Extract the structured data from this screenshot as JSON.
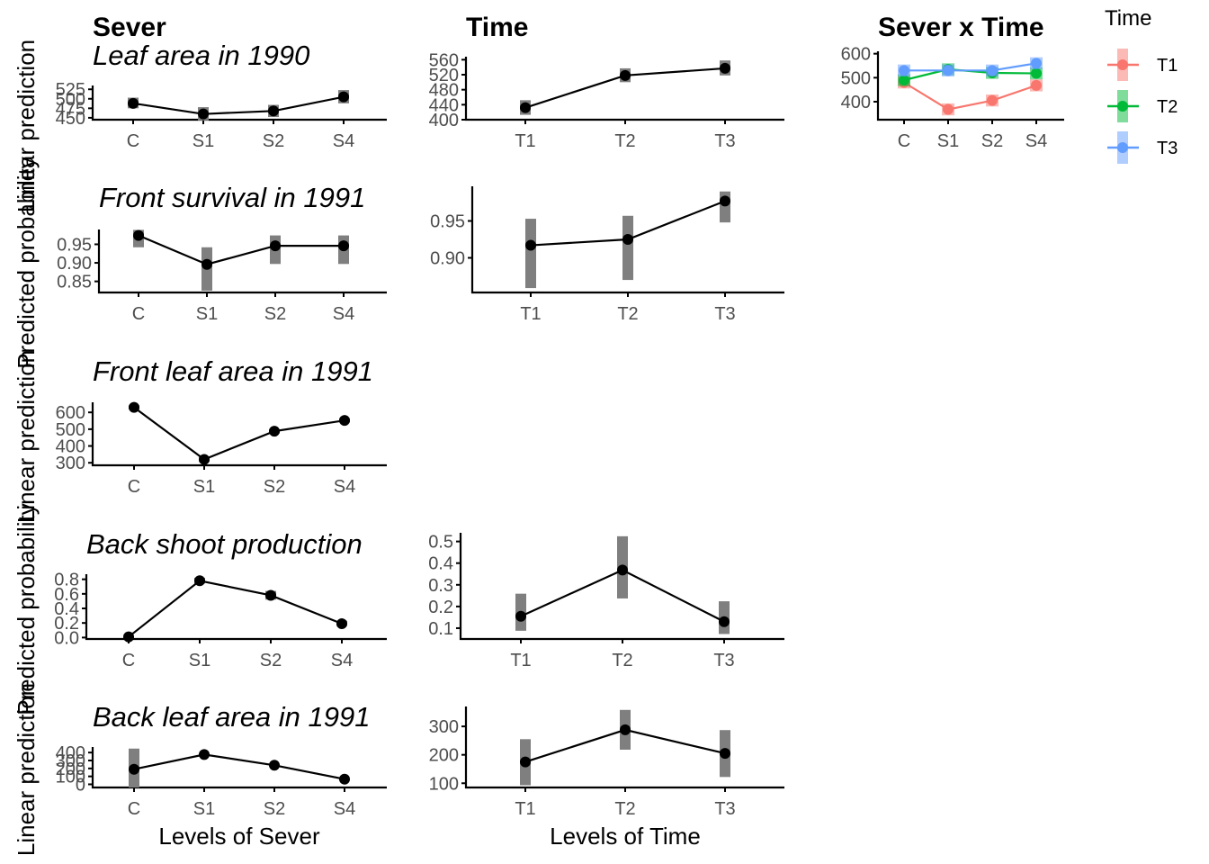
{
  "column_titles": {
    "sever": "Sever",
    "time": "Time",
    "interaction": "Sever x Time"
  },
  "y_axis_labels": [
    "Linear prediction",
    "Predicted probability",
    "Linear prediction",
    "Predicted probability",
    "Linear prediction"
  ],
  "x_axis_labels": {
    "sever": "Levels of Sever",
    "time": "Levels of Time"
  },
  "legend": {
    "title": "Time",
    "items": [
      {
        "label": "T1",
        "color": "#F8766D"
      },
      {
        "label": "T2",
        "color": "#00BA38"
      },
      {
        "label": "T3",
        "color": "#619CFF"
      }
    ]
  },
  "colors": {
    "line": "#000000",
    "ci": "#808080",
    "axis": "#000000",
    "tick_text": "#4d4d4d"
  },
  "chart_data": [
    {
      "id": "leaf1990-sever",
      "type": "line",
      "row": 0,
      "col": "sever",
      "title": "Leaf area in 1990",
      "ylabel": "Linear prediction",
      "xlabel": "",
      "categories": [
        "C",
        "S1",
        "S2",
        "S4"
      ],
      "values": [
        488,
        460,
        468,
        505
      ],
      "ci_low": [
        475,
        443,
        452,
        488
      ],
      "ci_high": [
        503,
        478,
        484,
        523
      ],
      "yticks": [
        450,
        475,
        500,
        525
      ],
      "ylim": [
        445,
        535
      ]
    },
    {
      "id": "leaf1990-time",
      "type": "line",
      "row": 0,
      "col": "time",
      "title": "",
      "ylabel": "",
      "xlabel": "",
      "categories": [
        "T1",
        "T2",
        "T3"
      ],
      "values": [
        432,
        518,
        537
      ],
      "ci_low": [
        413,
        500,
        518
      ],
      "ci_high": [
        452,
        537,
        558
      ],
      "yticks": [
        400,
        440,
        480,
        520,
        560
      ],
      "ylim": [
        400,
        568
      ]
    },
    {
      "id": "leaf1990-interaction",
      "type": "line",
      "row": 0,
      "col": "interaction",
      "title": "",
      "ylabel": "",
      "xlabel": "",
      "categories": [
        "C",
        "S1",
        "S2",
        "S4"
      ],
      "series": [
        {
          "name": "T1",
          "values": [
            480,
            368,
            405,
            468
          ],
          "ci_low": [
            455,
            343,
            380,
            443
          ],
          "ci_high": [
            505,
            393,
            430,
            493
          ]
        },
        {
          "name": "T2",
          "values": [
            490,
            535,
            520,
            518
          ],
          "ci_low": [
            465,
            510,
            495,
            493
          ],
          "ci_high": [
            515,
            560,
            545,
            543
          ]
        },
        {
          "name": "T3",
          "values": [
            530,
            530,
            530,
            560
          ],
          "ci_low": [
            505,
            505,
            505,
            535
          ],
          "ci_high": [
            555,
            555,
            555,
            585
          ]
        }
      ],
      "yticks": [
        400,
        500,
        600
      ],
      "ylim": [
        325,
        610
      ]
    },
    {
      "id": "frontsurv-sever",
      "type": "line",
      "row": 1,
      "col": "sever",
      "title": "Front survival in 1991",
      "ylabel": "Predicted probability",
      "xlabel": "",
      "categories": [
        "C",
        "S1",
        "S2",
        "S4"
      ],
      "values": [
        0.974,
        0.896,
        0.946,
        0.946
      ],
      "ci_low": [
        0.942,
        0.825,
        0.897,
        0.897
      ],
      "ci_high": [
        0.989,
        0.942,
        0.974,
        0.974
      ],
      "yticks": [
        0.85,
        0.9,
        0.95
      ],
      "ylim": [
        0.82,
        0.99
      ]
    },
    {
      "id": "frontsurv-time",
      "type": "line",
      "row": 1,
      "col": "time",
      "title": "",
      "ylabel": "",
      "xlabel": "",
      "categories": [
        "T1",
        "T2",
        "T3"
      ],
      "values": [
        0.917,
        0.925,
        0.977
      ],
      "ci_low": [
        0.859,
        0.87,
        0.948
      ],
      "ci_high": [
        0.953,
        0.957,
        0.99
      ],
      "yticks": [
        0.9,
        0.95
      ],
      "ylim": [
        0.853,
        0.997
      ]
    },
    {
      "id": "frontleaf-sever",
      "type": "line",
      "row": 2,
      "col": "sever",
      "title": "Front leaf area in 1991",
      "ylabel": "Linear prediction",
      "xlabel": "",
      "categories": [
        "C",
        "S1",
        "S2",
        "S4"
      ],
      "values": [
        630,
        320,
        488,
        552
      ],
      "ci_low": [
        618,
        305,
        475,
        540
      ],
      "ci_high": [
        642,
        335,
        500,
        565
      ],
      "yticks": [
        300,
        400,
        500,
        600
      ],
      "ylim": [
        285,
        660
      ]
    },
    {
      "id": "backshoot-sever",
      "type": "line",
      "row": 3,
      "col": "sever",
      "title": "Back shoot production",
      "ylabel": "Predicted probability",
      "xlabel": "",
      "categories": [
        "C",
        "S1",
        "S2",
        "S4"
      ],
      "values": [
        0.01,
        0.78,
        0.58,
        0.19
      ],
      "ci_low": [
        0.0,
        0.74,
        0.52,
        0.16
      ],
      "ci_high": [
        0.02,
        0.82,
        0.64,
        0.23
      ],
      "yticks": [
        0.0,
        0.2,
        0.4,
        0.6,
        0.8
      ],
      "ylim": [
        -0.02,
        0.87
      ]
    },
    {
      "id": "backshoot-time",
      "type": "line",
      "row": 3,
      "col": "time",
      "title": "",
      "ylabel": "",
      "xlabel": "",
      "categories": [
        "T1",
        "T2",
        "T3"
      ],
      "values": [
        0.155,
        0.368,
        0.13
      ],
      "ci_low": [
        0.088,
        0.237,
        0.073
      ],
      "ci_high": [
        0.259,
        0.524,
        0.224
      ],
      "yticks": [
        0.1,
        0.2,
        0.3,
        0.4,
        0.5
      ],
      "ylim": [
        0.05,
        0.54
      ]
    },
    {
      "id": "backleaf-sever",
      "type": "line",
      "row": 4,
      "col": "sever",
      "title": "Back leaf area in 1991",
      "ylabel": "Linear prediction",
      "xlabel": "Levels of Sever",
      "categories": [
        "C",
        "S1",
        "S2",
        "S4"
      ],
      "values": [
        190,
        375,
        240,
        65
      ],
      "ci_low": [
        -40,
        365,
        230,
        55
      ],
      "ci_high": [
        450,
        385,
        250,
        75
      ],
      "yticks": [
        0,
        100,
        200,
        300,
        400
      ],
      "ylim": [
        -40,
        470
      ]
    },
    {
      "id": "backleaf-time",
      "type": "line",
      "row": 4,
      "col": "time",
      "title": "",
      "ylabel": "",
      "xlabel": "Levels of Time",
      "categories": [
        "T1",
        "T2",
        "T3"
      ],
      "values": [
        175,
        288,
        205
      ],
      "ci_low": [
        93,
        218,
        122
      ],
      "ci_high": [
        255,
        358,
        287
      ],
      "yticks": [
        100,
        200,
        300
      ],
      "ylim": [
        85,
        370
      ]
    }
  ]
}
